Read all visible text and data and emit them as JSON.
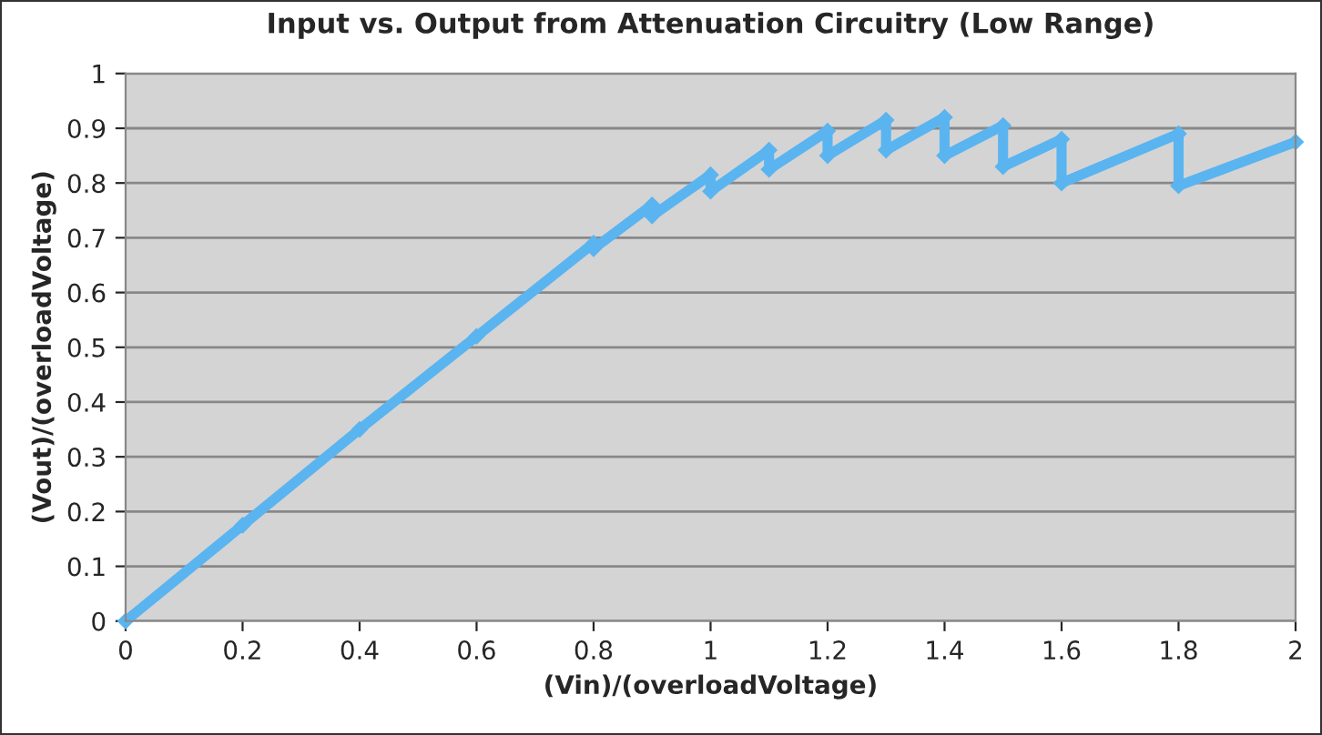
{
  "chart_data": {
    "type": "line",
    "title": "Input vs. Output from Attenuation Circuitry (Low Range)",
    "xlabel": "(Vin)/(overloadVoltage)",
    "ylabel": "(Vout)/(overloadVoltage)",
    "series": [
      {
        "color": "#5ab4f0",
        "x": [
          0,
          0.2,
          0.4,
          0.6,
          0.8,
          0.8,
          0.9,
          0.9,
          1.0,
          1.0,
          1.1,
          1.1,
          1.2,
          1.2,
          1.3,
          1.3,
          1.4,
          1.4,
          1.5,
          1.5,
          1.6,
          1.6,
          1.8,
          1.8,
          2.0
        ],
        "values": [
          0,
          0.175,
          0.35,
          0.52,
          0.69,
          0.68,
          0.76,
          0.74,
          0.815,
          0.785,
          0.86,
          0.825,
          0.895,
          0.85,
          0.915,
          0.86,
          0.92,
          0.85,
          0.905,
          0.83,
          0.88,
          0.8,
          0.89,
          0.795,
          0.875
        ]
      }
    ],
    "xlim": [
      0,
      2
    ],
    "ylim": [
      0,
      1
    ],
    "xticks": [
      0,
      0.2,
      0.4,
      0.6,
      0.8,
      1,
      1.2,
      1.4,
      1.6,
      1.8,
      2
    ],
    "yticks": [
      0,
      0.1,
      0.2,
      0.3,
      0.4,
      0.5,
      0.6,
      0.7,
      0.8,
      0.9,
      1
    ],
    "grid": "y",
    "marker": "diamond",
    "line_style": "solid"
  }
}
